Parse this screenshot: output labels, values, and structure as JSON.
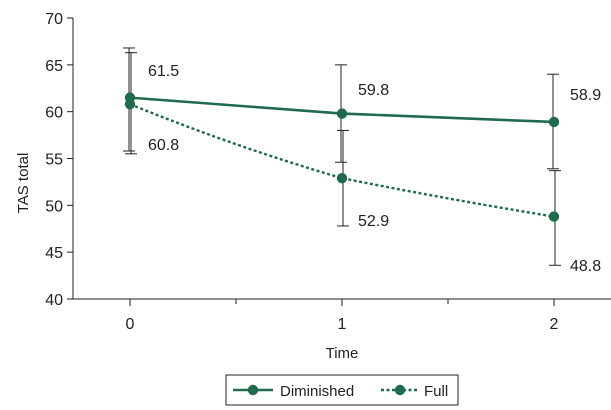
{
  "chart_data": {
    "type": "line",
    "title": "",
    "xlabel": "Time",
    "ylabel": "TAS total",
    "x": [
      0,
      1,
      2
    ],
    "x_ticks": [
      "0",
      "1",
      "2"
    ],
    "ylim": [
      40,
      70
    ],
    "y_ticks": [
      "40",
      "45",
      "50",
      "55",
      "60",
      "65",
      "70"
    ],
    "grid": false,
    "legend_position": "bottom",
    "series": [
      {
        "name": "Diminished",
        "line_style": "solid",
        "color": "#1f6b4c",
        "values": [
          61.5,
          59.8,
          58.9
        ],
        "labels": [
          "61.5",
          "59.8",
          "58.9"
        ],
        "error_low": [
          55.8,
          54.6,
          53.9
        ],
        "error_high": [
          66.8,
          65.0,
          64.0
        ]
      },
      {
        "name": "Full",
        "line_style": "dotted",
        "color": "#1f6b4c",
        "values": [
          60.8,
          52.9,
          48.8
        ],
        "labels": [
          "60.8",
          "52.9",
          "48.8"
        ],
        "error_low": [
          55.5,
          47.8,
          43.6
        ],
        "error_high": [
          66.3,
          58.0,
          53.7
        ]
      }
    ]
  }
}
